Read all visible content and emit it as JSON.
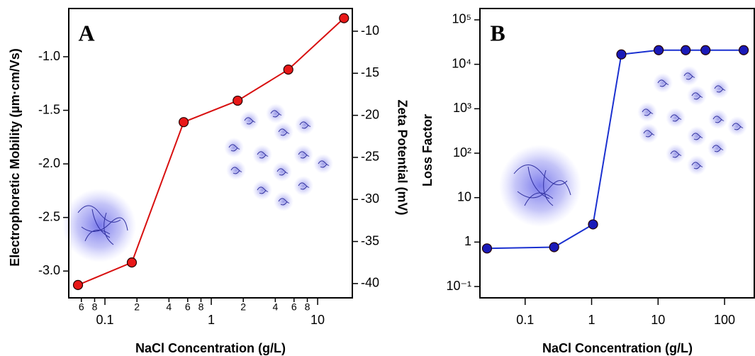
{
  "chart_data": [
    {
      "type": "line",
      "title": "A",
      "x_label": "NaCl Concentration (g/L)",
      "y_label": "Electrophoretic Mobility (µm·cm/Vs)",
      "y2_label": "Zeta Potential (mV)",
      "x_log": true,
      "y_log": false,
      "x": [
        0.0558,
        0.179,
        0.55,
        1.77,
        5.3,
        17.7
      ],
      "series": [
        {
          "name": null,
          "color": "#d81010",
          "marker_color": "#e81818",
          "values": [
            -3.13,
            -2.92,
            -1.61,
            -1.41,
            -1.12,
            -0.64
          ]
        }
      ],
      "xlim": [
        0.0457,
        21.2
      ],
      "xticks": [
        {
          "value": 0.06,
          "label": "6"
        },
        {
          "value": 0.08,
          "label": "8"
        },
        0.1,
        {
          "value": 0.2,
          "label": "2"
        },
        {
          "value": 0.4,
          "label": "4"
        },
        {
          "value": 0.6,
          "label": "6"
        },
        {
          "value": 0.8,
          "label": "8"
        },
        1,
        2,
        4,
        6,
        8,
        10
      ],
      "ylim": [
        -3.25,
        -0.55
      ],
      "yticks": [
        {
          "value": -3,
          "label": "-3.0"
        },
        -2.5,
        {
          "value": -2,
          "label": "-2.0"
        },
        -1.5,
        {
          "value": -1,
          "label": "-1.0"
        }
      ],
      "y2lim": [
        -41.7,
        -7.3
      ],
      "y2ticks": [
        -40,
        -35,
        -30,
        -25,
        -20,
        -15,
        -10
      ]
    },
    {
      "type": "line",
      "title": "B",
      "x_label": "NaCl Concentration (g/L)",
      "y_label": "Loss Factor",
      "x_log": true,
      "y_log": true,
      "x": [
        0.0267,
        0.273,
        1.05,
        2.8,
        10.2,
        26,
        51.7,
        194
      ],
      "series": [
        {
          "name": null,
          "color": "#1a30d0",
          "marker_color": "#1a1ab8",
          "values": [
            0.72,
            0.77,
            2.5,
            16700,
            20800,
            20800,
            20800,
            20800
          ]
        }
      ],
      "xlim": [
        0.0209,
        280
      ],
      "xticks": [
        0.1,
        1,
        10,
        100
      ],
      "ylim": [
        0.0556,
        180000
      ],
      "yticks": [
        {
          "value": 0.1,
          "label": "10⁻¹"
        },
        1,
        10,
        {
          "value": 100,
          "label": "10²"
        },
        {
          "value": 1000,
          "label": "10³"
        },
        {
          "value": 10000,
          "label": "10⁴"
        },
        {
          "value": 100000,
          "label": "10⁵"
        }
      ]
    }
  ]
}
